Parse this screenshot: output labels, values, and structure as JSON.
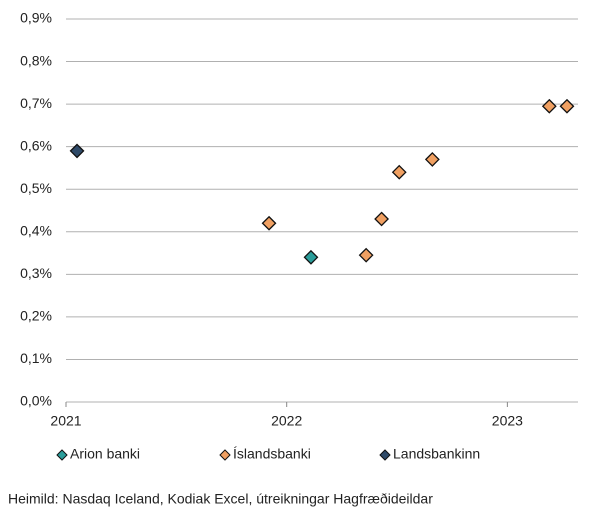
{
  "chart_data": {
    "type": "scatter",
    "xlim": [
      2021,
      2023.32
    ],
    "xticks": [
      2021,
      2022,
      2023
    ],
    "ylim": [
      0,
      0.9
    ],
    "yticks": [
      {
        "value": 0,
        "label": "0,0%"
      },
      {
        "value": 0.1,
        "label": "0,1%"
      },
      {
        "value": 0.2,
        "label": "0,2%"
      },
      {
        "value": 0.3,
        "label": "0,3%"
      },
      {
        "value": 0.4,
        "label": "0,4%"
      },
      {
        "value": 0.5,
        "label": "0,5%"
      },
      {
        "value": 0.6,
        "label": "0,6%"
      },
      {
        "value": 0.7,
        "label": "0,7%"
      },
      {
        "value": 0.8,
        "label": "0,8%"
      },
      {
        "value": 0.9,
        "label": "0,9%"
      }
    ],
    "grid": true,
    "legend": "bottom",
    "series": [
      {
        "name": "Arion banki",
        "color": "#2a9d9a",
        "x": [
          2022.11
        ],
        "values": [
          0.34
        ]
      },
      {
        "name": "Íslandsbanki",
        "color": "#f0a062",
        "x": [
          2021.92,
          2022.36,
          2022.43,
          2022.51,
          2022.66,
          2023.19,
          2023.27
        ],
        "values": [
          0.42,
          0.345,
          0.43,
          0.54,
          0.57,
          0.695,
          0.695
        ]
      },
      {
        "name": "Landsbankinn",
        "color": "#2f4a68",
        "x": [
          2021.05
        ],
        "values": [
          0.59
        ]
      }
    ],
    "source": "Heimild: Nasdaq Iceland, Kodiak Excel, útreikningar Hagfræðideildar"
  }
}
